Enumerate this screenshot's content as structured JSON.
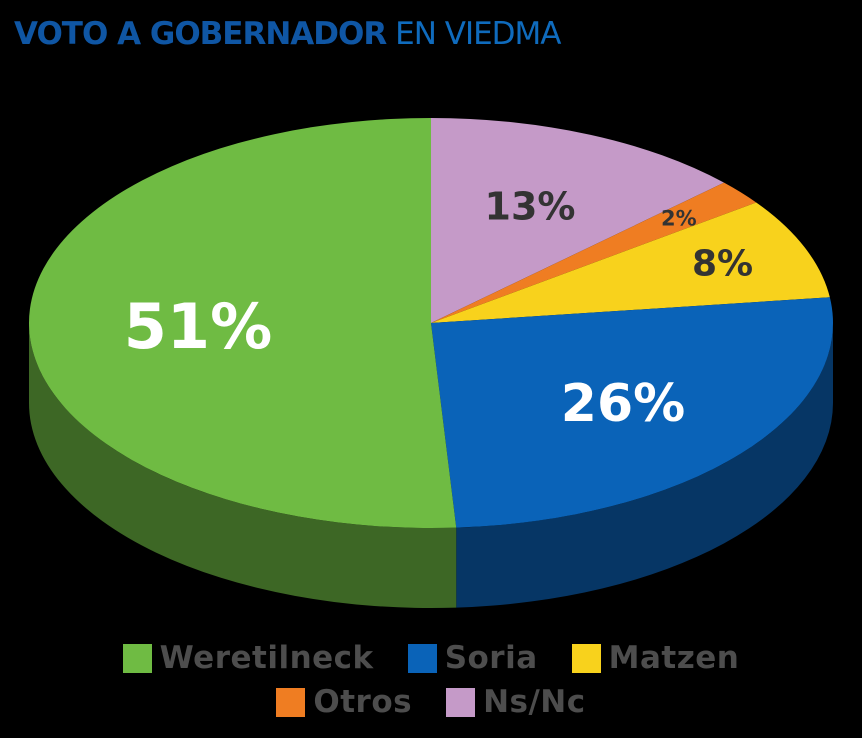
{
  "title": {
    "strong": "VOTO A GOBERNADOR",
    "light": "EN VIEDMA"
  },
  "chart_data": {
    "type": "pie",
    "title": "VOTO A GOBERNADOR EN VIEDMA",
    "slices": [
      {
        "label": "Ns/Nc",
        "value": 13,
        "display": "13%",
        "color": "#c59ac8"
      },
      {
        "label": "Otros",
        "value": 2,
        "display": "2%",
        "color": "#ef7d22"
      },
      {
        "label": "Matzen",
        "value": 8,
        "display": "8%",
        "color": "#f8d21c"
      },
      {
        "label": "Soria",
        "value": 26,
        "display": "26%",
        "color": "#0a63b8"
      },
      {
        "label": "Weretilneck",
        "value": 51,
        "display": "51%",
        "color": "#6fbb43"
      }
    ],
    "legend": {
      "position": "bottom",
      "rows": [
        [
          {
            "label": "Weretilneck",
            "color": "#6fbb43"
          },
          {
            "label": "Soria",
            "color": "#0a63b8"
          },
          {
            "label": "Matzen",
            "color": "#f8d21c"
          }
        ],
        [
          {
            "label": "Otros",
            "color": "#ef7d22"
          },
          {
            "label": "Ns/Nc",
            "color": "#c59ac8"
          }
        ]
      ]
    }
  }
}
